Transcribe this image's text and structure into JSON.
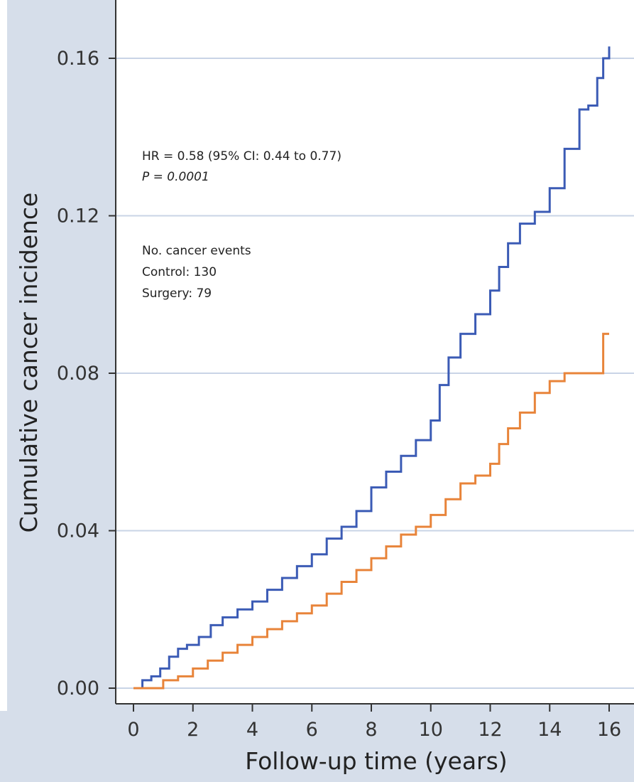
{
  "chart_data": {
    "type": "line",
    "title": "",
    "xlabel": "Follow-up time (years)",
    "ylabel": "Cumulative cancer incidence",
    "xlim": [
      0,
      16
    ],
    "ylim": [
      0,
      0.16
    ],
    "x_ticks": [
      0,
      2,
      4,
      6,
      8,
      10,
      12,
      14,
      16
    ],
    "y_ticks": [
      0.0,
      0.04,
      0.08,
      0.12,
      0.16
    ],
    "x_tick_labels": [
      "0",
      "2",
      "4",
      "6",
      "8",
      "10",
      "12",
      "14",
      "16"
    ],
    "y_tick_labels": [
      "0.00",
      "0.04",
      "0.08",
      "0.12",
      "0.16"
    ],
    "grid": "horizontal",
    "annotations": [
      "HR = 0.58 (95% CI: 0.44 to 0.77)",
      "P = 0.0001",
      "No. cancer events",
      "Control: 130",
      "Surgery: 79"
    ],
    "series": [
      {
        "color": "#3b5bb5",
        "step": true,
        "x": [
          0,
          0.3,
          0.6,
          0.9,
          1.2,
          1.5,
          1.8,
          2.2,
          2.6,
          3.0,
          3.5,
          4.0,
          4.5,
          5.0,
          5.5,
          6.0,
          6.5,
          7.0,
          7.5,
          8.0,
          8.5,
          9.0,
          9.5,
          10.0,
          10.3,
          10.6,
          11.0,
          11.5,
          12.0,
          12.3,
          12.6,
          13.0,
          13.5,
          14.0,
          14.5,
          15.0,
          15.3,
          15.6,
          15.8,
          16.0
        ],
        "y": [
          0,
          0.002,
          0.003,
          0.005,
          0.008,
          0.01,
          0.011,
          0.013,
          0.016,
          0.018,
          0.02,
          0.022,
          0.025,
          0.028,
          0.031,
          0.034,
          0.038,
          0.041,
          0.045,
          0.051,
          0.055,
          0.059,
          0.063,
          0.068,
          0.077,
          0.084,
          0.09,
          0.095,
          0.101,
          0.107,
          0.113,
          0.118,
          0.121,
          0.127,
          0.137,
          0.147,
          0.148,
          0.155,
          0.16,
          0.163
        ]
      },
      {
        "color": "#e8843a",
        "step": true,
        "x": [
          0,
          0.5,
          1.0,
          1.5,
          2.0,
          2.5,
          3.0,
          3.5,
          4.0,
          4.5,
          5.0,
          5.5,
          6.0,
          6.5,
          7.0,
          7.5,
          8.0,
          8.5,
          9.0,
          9.5,
          10.0,
          10.5,
          11.0,
          11.5,
          12.0,
          12.3,
          12.6,
          13.0,
          13.5,
          14.0,
          14.5,
          15.0,
          15.5,
          15.8,
          16.0
        ],
        "y": [
          0,
          0.0,
          0.002,
          0.003,
          0.005,
          0.007,
          0.009,
          0.011,
          0.013,
          0.015,
          0.017,
          0.019,
          0.021,
          0.024,
          0.027,
          0.03,
          0.033,
          0.036,
          0.039,
          0.041,
          0.044,
          0.048,
          0.052,
          0.054,
          0.057,
          0.062,
          0.066,
          0.07,
          0.075,
          0.078,
          0.08,
          0.08,
          0.08,
          0.09,
          0.09
        ]
      }
    ]
  }
}
